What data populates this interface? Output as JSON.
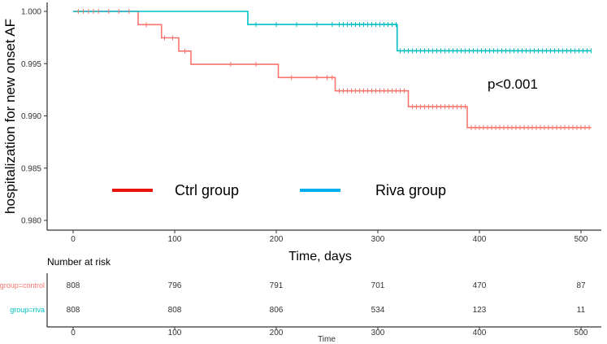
{
  "chart_data": {
    "type": "line",
    "subtype": "kaplan-meier",
    "xlabel": "Time, days",
    "ylabel": "hospitalization for new onset AF",
    "xlim": [
      0,
      510
    ],
    "ylim": [
      0.98,
      1.0
    ],
    "x_ticks": [
      0,
      100,
      200,
      300,
      400,
      500
    ],
    "y_ticks": [
      0.98,
      0.985,
      0.99,
      0.995,
      1.0
    ],
    "y_tick_labels": [
      "0.980",
      "0.985",
      "0.990",
      "0.995",
      "1.000"
    ],
    "annotation": "p<0.001",
    "legend": [
      "Ctrl group",
      "Riva group"
    ],
    "series": [
      {
        "name": "Ctrl group",
        "color": "#F8766D",
        "legend_color": "#E8140A",
        "steps": [
          [
            0,
            1.0
          ],
          [
            64,
            0.99873
          ],
          [
            87,
            0.99747
          ],
          [
            104,
            0.9962
          ],
          [
            116,
            0.99494
          ],
          [
            202,
            0.99367
          ],
          [
            258,
            0.9924
          ],
          [
            330,
            0.99088
          ],
          [
            388,
            0.98888
          ],
          [
            510,
            0.98888
          ]
        ],
        "censor_x": [
          5,
          10,
          15,
          20,
          25,
          35,
          45,
          55,
          72,
          90,
          98,
          110,
          155,
          180,
          215,
          240,
          250,
          255,
          262,
          266,
          270,
          274,
          278,
          282,
          286,
          290,
          294,
          298,
          302,
          306,
          310,
          314,
          318,
          322,
          326,
          334,
          338,
          342,
          346,
          350,
          354,
          358,
          362,
          366,
          370,
          374,
          378,
          382,
          386,
          392,
          396,
          400,
          404,
          408,
          412,
          416,
          420,
          424,
          428,
          432,
          436,
          440,
          444,
          448,
          452,
          456,
          460,
          464,
          468,
          472,
          476,
          480,
          484,
          488,
          492,
          496,
          500,
          504,
          508
        ]
      },
      {
        "name": "Riva group",
        "color": "#00BFC4",
        "legend_color": "#00AEEF",
        "steps": [
          [
            0,
            1.0
          ],
          [
            172,
            0.99875
          ],
          [
            319,
            0.99623
          ],
          [
            510,
            0.99623
          ]
        ],
        "censor_x": [
          180,
          200,
          220,
          240,
          255,
          262,
          266,
          270,
          274,
          278,
          282,
          286,
          290,
          294,
          298,
          302,
          306,
          310,
          314,
          318,
          322,
          326,
          330,
          334,
          338,
          342,
          346,
          350,
          354,
          358,
          362,
          366,
          370,
          374,
          378,
          382,
          386,
          390,
          394,
          398,
          402,
          406,
          410,
          414,
          418,
          422,
          426,
          430,
          434,
          438,
          442,
          446,
          450,
          454,
          458,
          462,
          466,
          470,
          474,
          478,
          482,
          486,
          490,
          494,
          498,
          502,
          506,
          510
        ]
      }
    ],
    "risk_table": {
      "title": "Number at risk",
      "xlabel": "Time",
      "times": [
        0,
        100,
        200,
        300,
        400,
        500
      ],
      "rows": [
        {
          "label": "group=control",
          "color": "#F8766D",
          "values": [
            "808",
            "796",
            "791",
            "701",
            "470",
            "87"
          ]
        },
        {
          "label": "group=riva",
          "color": "#00BFC4",
          "values": [
            "808",
            "808",
            "806",
            "534",
            "123",
            "11"
          ]
        }
      ]
    }
  }
}
